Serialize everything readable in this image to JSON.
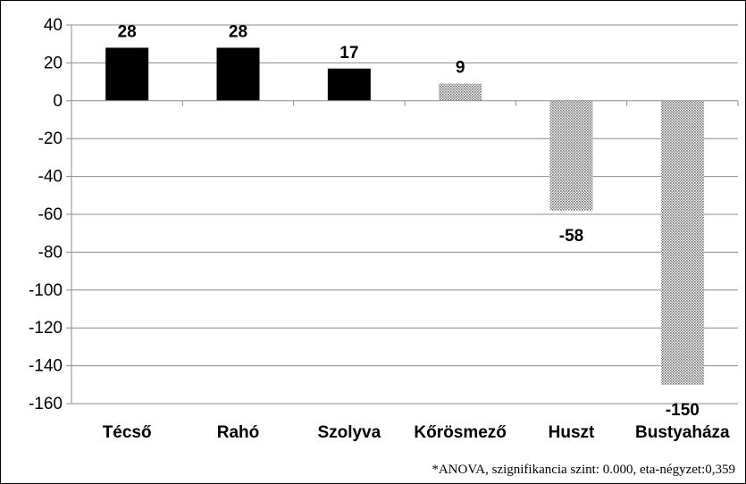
{
  "chart_data": {
    "type": "bar",
    "categories": [
      "Técső",
      "Rahó",
      "Szolyva",
      "Kőrösmező",
      "Huszt",
      "Bustyaháza"
    ],
    "values": [
      28,
      28,
      17,
      9,
      -58,
      -150
    ],
    "data_labels": [
      "28",
      "28",
      "17",
      "9",
      "-58",
      "-150"
    ],
    "bar_fills": [
      "solid",
      "solid",
      "solid",
      "dotted",
      "dotted",
      "dotted"
    ],
    "title": "",
    "xlabel": "",
    "ylabel": "",
    "ylim": [
      -160,
      40
    ],
    "y_ticks": [
      40,
      20,
      0,
      -20,
      -40,
      -60,
      -80,
      -100,
      -120,
      -140,
      -160
    ],
    "grid": true,
    "legend": "none",
    "colors": {
      "solid": "#000000",
      "dotted": "#a0a0a0",
      "grid": "#8c8c8c",
      "axis": "#8c8c8c"
    }
  },
  "footnote": "*ANOVA, szignifikancia szint: 0.000, eta-négyzet:0,359"
}
